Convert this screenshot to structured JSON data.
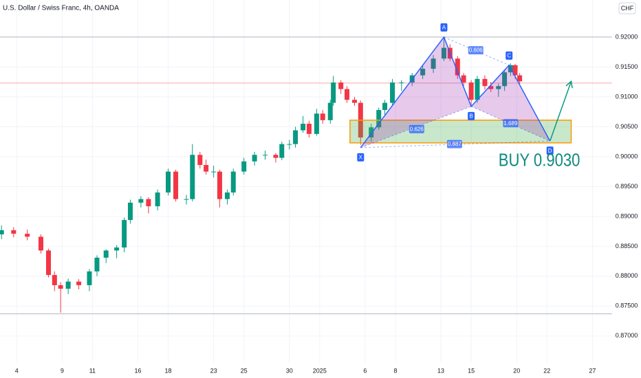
{
  "chart_data": {
    "type": "candlestick",
    "title": "U.S. Dollar / Swiss Franc, 4h, OANDA",
    "currency": "CHF",
    "up_color": "#089981",
    "down_color": "#f23645",
    "grid": true,
    "xlim": [
      -1.1,
      39.3
    ],
    "ylim": [
      0.8655,
      0.9262
    ],
    "xticks": [
      {
        "value": 0,
        "label": "4"
      },
      {
        "value": 3,
        "label": "9"
      },
      {
        "value": 5,
        "label": "11"
      },
      {
        "value": 8,
        "label": "16"
      },
      {
        "value": 10,
        "label": "18"
      },
      {
        "value": 13,
        "label": "23"
      },
      {
        "value": 15,
        "label": "25"
      },
      {
        "value": 18,
        "label": "30"
      },
      {
        "value": 20,
        "label": "2025"
      },
      {
        "value": 23,
        "label": "6"
      },
      {
        "value": 25,
        "label": "8"
      },
      {
        "value": 28,
        "label": "13"
      },
      {
        "value": 30,
        "label": "15"
      },
      {
        "value": 33,
        "label": "20"
      },
      {
        "value": 35,
        "label": "22"
      },
      {
        "value": 38,
        "label": "27"
      }
    ],
    "yticks": [
      {
        "value": 0.87,
        "label": "0.87000"
      },
      {
        "value": 0.875,
        "label": "0.87500"
      },
      {
        "value": 0.88,
        "label": "0.88000"
      },
      {
        "value": 0.885,
        "label": "0.88500"
      },
      {
        "value": 0.89,
        "label": "0.89000"
      },
      {
        "value": 0.895,
        "label": "0.89500"
      },
      {
        "value": 0.9,
        "label": "0.90000"
      },
      {
        "value": 0.905,
        "label": "0.90500"
      },
      {
        "value": 0.91,
        "label": "0.91000"
      },
      {
        "value": 0.915,
        "label": "0.91500"
      },
      {
        "value": 0.92,
        "label": "0.92000"
      }
    ],
    "x": [
      -1.0,
      -0.2,
      0.7,
      1.6,
      2.1,
      2.5,
      2.9,
      3.4,
      4.1,
      4.8,
      5.3,
      5.9,
      6.6,
      7.1,
      7.5,
      8.2,
      8.7,
      9.3,
      10.0,
      10.5,
      11.2,
      11.6,
      12.1,
      12.5,
      13.0,
      13.4,
      13.9,
      14.3,
      15.0,
      15.7,
      16.4,
      17.1,
      17.5,
      18.0,
      18.4,
      18.9,
      19.3,
      19.8,
      20.2,
      20.7,
      20.9,
      21.4,
      21.8,
      22.3,
      22.7,
      23.4,
      23.9,
      24.3,
      24.8,
      25.4,
      26.1,
      26.8,
      27.5,
      28.2,
      28.6,
      29.1,
      29.5,
      30.0,
      30.4,
      30.9,
      31.3,
      31.8,
      32.2,
      32.6,
      32.9,
      33.2
    ],
    "open": [
      0.887,
      0.8877,
      0.8871,
      0.8866,
      0.8843,
      0.8802,
      0.8785,
      0.8779,
      0.8791,
      0.8785,
      0.8808,
      0.8831,
      0.8843,
      0.8848,
      0.8894,
      0.8923,
      0.8929,
      0.8917,
      0.894,
      0.8975,
      0.8929,
      0.8929,
      0.9003,
      0.8986,
      0.8975,
      0.8975,
      0.8929,
      0.894,
      0.8975,
      0.8992,
      0.9003,
      0.9003,
      0.8998,
      0.9021,
      0.9021,
      0.9044,
      0.9055,
      0.9038,
      0.9072,
      0.9061,
      0.909,
      0.9124,
      0.9113,
      0.9095,
      0.909,
      0.9032,
      0.9049,
      0.9078,
      0.909,
      0.9124,
      0.9124,
      0.9136,
      0.9147,
      0.9164,
      0.9182,
      0.9164,
      0.9136,
      0.9124,
      0.9095,
      0.913,
      0.9118,
      0.9113,
      0.9118,
      0.9141,
      0.9153,
      0.9136
    ],
    "high": [
      0.8885,
      0.8882,
      0.8878,
      0.887,
      0.8846,
      0.8808,
      0.879,
      0.8796,
      0.8795,
      0.8812,
      0.8835,
      0.8845,
      0.8852,
      0.8898,
      0.8928,
      0.8934,
      0.8932,
      0.8945,
      0.898,
      0.8978,
      0.8936,
      0.9021,
      0.9008,
      0.8995,
      0.8985,
      0.8978,
      0.8945,
      0.898,
      0.8998,
      0.9008,
      0.901,
      0.9006,
      0.9025,
      0.9028,
      0.905,
      0.9068,
      0.906,
      0.908,
      0.9078,
      0.9095,
      0.9135,
      0.9128,
      0.9118,
      0.91,
      0.9094,
      0.9055,
      0.9082,
      0.9095,
      0.913,
      0.9128,
      0.914,
      0.9152,
      0.917,
      0.92,
      0.9188,
      0.9168,
      0.914,
      0.9128,
      0.9135,
      0.9136,
      0.9125,
      0.9122,
      0.9145,
      0.9156,
      0.9155,
      0.914
    ],
    "low": [
      0.8862,
      0.8865,
      0.886,
      0.8838,
      0.8798,
      0.8775,
      0.8739,
      0.877,
      0.8778,
      0.8775,
      0.88,
      0.8822,
      0.883,
      0.884,
      0.8888,
      0.8915,
      0.8905,
      0.891,
      0.8935,
      0.8925,
      0.892,
      0.8925,
      0.898,
      0.897,
      0.8965,
      0.8915,
      0.892,
      0.8935,
      0.897,
      0.8985,
      0.8995,
      0.899,
      0.8994,
      0.9012,
      0.9015,
      0.904,
      0.9032,
      0.9035,
      0.9055,
      0.9055,
      0.9085,
      0.9105,
      0.909,
      0.9085,
      0.902,
      0.9025,
      0.9045,
      0.907,
      0.9085,
      0.911,
      0.9118,
      0.913,
      0.914,
      0.916,
      0.916,
      0.913,
      0.9118,
      0.9084,
      0.909,
      0.9112,
      0.9108,
      0.91,
      0.911,
      0.9135,
      0.913,
      0.9122
    ],
    "close": [
      0.8877,
      0.8871,
      0.8866,
      0.8843,
      0.8802,
      0.8785,
      0.8779,
      0.8791,
      0.8785,
      0.8808,
      0.8831,
      0.8843,
      0.8848,
      0.8894,
      0.8923,
      0.8929,
      0.8917,
      0.894,
      0.8975,
      0.8929,
      0.8929,
      0.9003,
      0.8986,
      0.8975,
      0.8975,
      0.8929,
      0.894,
      0.8975,
      0.8992,
      0.9003,
      0.9003,
      0.8998,
      0.9021,
      0.9021,
      0.9044,
      0.9055,
      0.9038,
      0.9072,
      0.9061,
      0.909,
      0.9124,
      0.9113,
      0.9095,
      0.909,
      0.9032,
      0.9049,
      0.9078,
      0.909,
      0.9124,
      0.9124,
      0.9136,
      0.9147,
      0.9164,
      0.9182,
      0.9164,
      0.9136,
      0.9124,
      0.9095,
      0.913,
      0.9118,
      0.9113,
      0.9118,
      0.9141,
      0.9153,
      0.9136,
      0.9126
    ],
    "hlines": [
      {
        "value": 0.92,
        "color": "#b2b5be"
      },
      {
        "value": 0.8737,
        "color": "#b2b5be"
      },
      {
        "value": 0.9123,
        "color": "#f7a9a7"
      }
    ],
    "zone": {
      "x": [
        22.0,
        36.6
      ],
      "y": [
        0.9023,
        0.9061
      ],
      "fill": "rgba(76,175,80,0.3)",
      "border": "#ff9800"
    },
    "pattern": {
      "color": "#2962ff",
      "fill": "rgba(156,39,176,0.25)",
      "labels": [
        "X",
        "A",
        "B",
        "C",
        "D"
      ],
      "x": [
        22.7,
        28.2,
        30.0,
        32.5,
        35.2
      ],
      "y": [
        0.9015,
        0.92,
        0.9084,
        0.9153,
        0.9026
      ],
      "ratios": [
        {
          "value": 0.606,
          "x": 30.3,
          "y": 0.9178
        },
        {
          "value": 0.626,
          "x": 26.4,
          "y": 0.9046
        },
        {
          "value": 1.689,
          "x": 32.6,
          "y": 0.9056
        },
        {
          "value": 0.887,
          "x": 28.9,
          "y": 0.9021
        }
      ]
    },
    "arrow": {
      "x": [
        35.2,
        36.6
      ],
      "y": [
        0.9026,
        0.9126
      ],
      "color": "#089981"
    },
    "annotation": {
      "text": "BUY 0.9030",
      "x": 31.8,
      "y": 0.8992,
      "color": "#0f8a7e"
    }
  }
}
